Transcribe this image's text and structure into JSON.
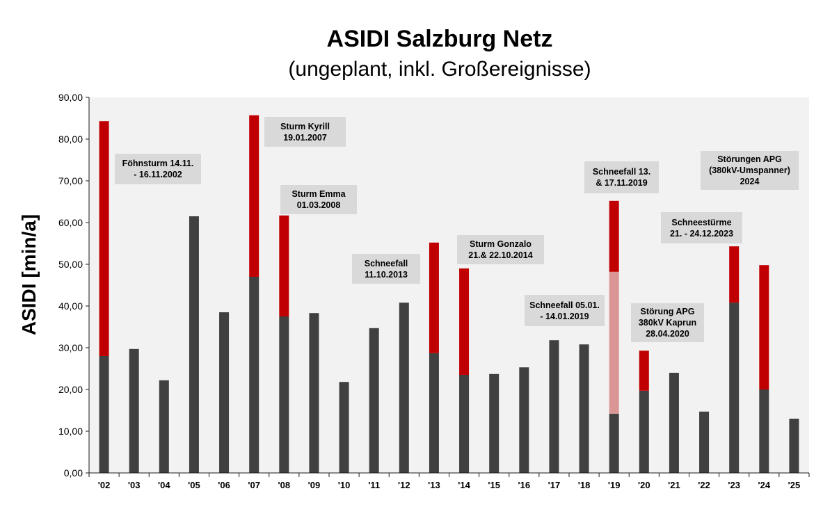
{
  "chart_data": {
    "type": "bar",
    "stacked": true,
    "title": "ASIDI Salzburg Netz",
    "subtitle": "(ungeplant, inkl. Großereignisse)",
    "ylabel": "ASIDI [min/a]",
    "ylim": [
      0,
      90
    ],
    "yticks": [
      0,
      10,
      20,
      30,
      40,
      50,
      60,
      70,
      80,
      90
    ],
    "ytick_labels": [
      "0,00",
      "10,00",
      "20,00",
      "30,00",
      "40,00",
      "50,00",
      "60,00",
      "70,00",
      "80,00",
      "90,00"
    ],
    "grid": false,
    "legend": "none",
    "plot_background": "#f2f2f2",
    "categories": [
      "'02",
      "'03",
      "'04",
      "'05",
      "'06",
      "'07",
      "'08",
      "'09",
      "'10",
      "'11",
      "'12",
      "'13",
      "'14",
      "'15",
      "'16",
      "'17",
      "'18",
      "'19",
      "'20",
      "'21",
      "'22",
      "'23",
      "'24",
      "'25"
    ],
    "series": [
      {
        "color": "#404040",
        "values": [
          28.0,
          29.7,
          22.2,
          61.5,
          38.5,
          47.0,
          37.5,
          38.3,
          21.8,
          34.7,
          40.8,
          28.7,
          23.5,
          23.7,
          25.3,
          31.8,
          30.8,
          14.2,
          19.7,
          24.0,
          14.7,
          40.8,
          20.0,
          13.0
        ]
      },
      {
        "color": "#d99694",
        "values": [
          0,
          0,
          0,
          0,
          0,
          0,
          0,
          0,
          0,
          0,
          0,
          0,
          0,
          0,
          0,
          0,
          0,
          34.0,
          0,
          0,
          0,
          0,
          0,
          0
        ]
      },
      {
        "color": "#c00000",
        "values": [
          56.3,
          0,
          0,
          0,
          0,
          38.7,
          24.2,
          0,
          0,
          0,
          0,
          26.5,
          25.5,
          0,
          0,
          0,
          0,
          17.0,
          9.6,
          0,
          0,
          13.5,
          29.8,
          0
        ]
      }
    ],
    "annotations": [
      {
        "lines": [
          "Föhnsturm 14.11.",
          "- 16.11.2002"
        ]
      },
      {
        "lines": [
          "Sturm Kyrill",
          "19.01.2007"
        ]
      },
      {
        "lines": [
          "Sturm Emma",
          "01.03.2008"
        ]
      },
      {
        "lines": [
          "Schneefall",
          "11.10.2013"
        ]
      },
      {
        "lines": [
          "Sturm Gonzalo",
          "21.& 22.10.2014"
        ]
      },
      {
        "lines": [
          "Schneefall 05.01.",
          "- 14.01.2019"
        ]
      },
      {
        "lines": [
          "Schneefall 13.",
          "& 17.11.2019"
        ]
      },
      {
        "lines": [
          "Störung APG",
          "380kV Kaprun",
          "28.04.2020"
        ]
      },
      {
        "lines": [
          "Schneestürme",
          "21. - 24.12.2023"
        ]
      },
      {
        "lines": [
          "Störungen APG",
          "(380kV-Umspanner)",
          "2024"
        ]
      }
    ]
  }
}
